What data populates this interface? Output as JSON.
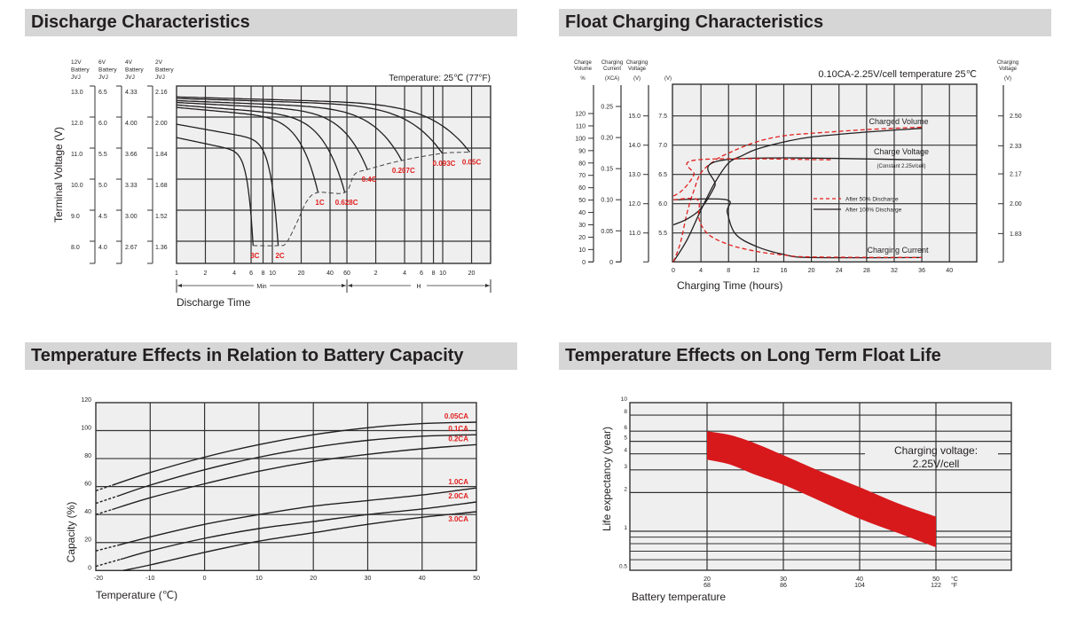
{
  "chart_data": [
    {
      "type": "line",
      "title": "Discharge Characteristics",
      "annotation": "Temperature: 25℃ (77°F)",
      "xlabel": "Discharge Time",
      "ylabel": "Terminal Voltage (V)",
      "x_scale": "log",
      "x_unit_groups": [
        {
          "label": "Min"
        },
        {
          "label": "H"
        }
      ],
      "x_ticks": [
        {
          "label": "1",
          "minutes": 1
        },
        {
          "label": "2",
          "minutes": 2
        },
        {
          "label": "4",
          "minutes": 4
        },
        {
          "label": "6",
          "minutes": 6
        },
        {
          "label": "8",
          "minutes": 8
        },
        {
          "label": "10",
          "minutes": 10
        },
        {
          "label": "20",
          "minutes": 20
        },
        {
          "label": "40",
          "minutes": 40
        },
        {
          "label": "60",
          "minutes": 60
        },
        {
          "label": "2",
          "minutes": 120
        },
        {
          "label": "4",
          "minutes": 240
        },
        {
          "label": "6",
          "minutes": 360
        },
        {
          "label": "8",
          "minutes": 480
        },
        {
          "label": "10",
          "minutes": 600
        },
        {
          "label": "20",
          "minutes": 1200
        }
      ],
      "ylim_12v": [
        7.3,
        13.0
      ],
      "y_axes": [
        {
          "header": [
            "12V",
            "Battery",
            "JVJ"
          ],
          "ticks": [
            "13.0",
            "12.0",
            "11.0",
            "10.0",
            "9.0",
            "8.0"
          ]
        },
        {
          "header": [
            "6V",
            "Battery",
            "JVJ"
          ],
          "ticks": [
            "6.5",
            "6.0",
            "5.5",
            "5.0",
            "4.5",
            "4.0"
          ]
        },
        {
          "header": [
            "4V",
            "Battery",
            "JVJ"
          ],
          "ticks": [
            "4.33",
            "4.00",
            "3.66",
            "3.33",
            "3.00",
            "2.67"
          ]
        },
        {
          "header": [
            "2V",
            "Battery",
            "JVJ"
          ],
          "ticks": [
            "2.16",
            "2.00",
            "1.84",
            "1.68",
            "1.52",
            "1.36"
          ]
        }
      ],
      "series": [
        {
          "name": "3C",
          "v_start": 11.34,
          "end_minutes": 6.3,
          "v_end": 7.86
        },
        {
          "name": "2C",
          "v_start": 11.77,
          "end_minutes": 11.5,
          "v_end": 7.86
        },
        {
          "name": "1C",
          "v_start": 12.31,
          "end_minutes": 30,
          "v_end": 9.57
        },
        {
          "name": "0.628C",
          "v_start": 12.39,
          "end_minutes": 57,
          "v_end": 9.57
        },
        {
          "name": "0.4C",
          "v_start": 12.47,
          "end_minutes": 98,
          "v_end": 10.31
        },
        {
          "name": "0.207C",
          "v_start": 12.53,
          "end_minutes": 224,
          "v_end": 10.6
        },
        {
          "name": "0.093C",
          "v_start": 12.6,
          "end_minutes": 594,
          "v_end": 10.83
        },
        {
          "name": "0.05C",
          "v_start": 12.65,
          "end_minutes": 1150,
          "v_end": 10.87
        }
      ],
      "cutoff_voltage_line": [
        [
          6.3,
          7.86
        ],
        [
          11.5,
          7.86
        ],
        [
          14,
          7.95
        ],
        [
          18,
          8.6
        ],
        [
          23,
          9.3
        ],
        [
          30,
          9.57
        ],
        [
          57,
          9.57
        ],
        [
          72,
          10.15
        ],
        [
          98,
          10.31
        ],
        [
          224,
          10.6
        ],
        [
          594,
          10.83
        ],
        [
          1150,
          10.87
        ]
      ],
      "label_color": "#e0201f",
      "grid": true
    },
    {
      "type": "line",
      "title": "Float Charging Characteristics",
      "annotation": "0.10CA-2.25V/cell  temperature 25℃",
      "xlabel": "Charging Time (hours)",
      "xlim": [
        0,
        44
      ],
      "x_ticks": [
        "0",
        "4",
        "8",
        "12",
        "16",
        "20",
        "24",
        "28",
        "32",
        "36",
        "40"
      ],
      "y_axes": [
        {
          "id": "volume",
          "header": [
            "Charge",
            "Volume",
            "%"
          ],
          "ticks": [
            "0",
            "10",
            "20",
            "30",
            "40",
            "50",
            "60",
            "70",
            "80",
            "90",
            "100",
            "110",
            "120"
          ]
        },
        {
          "id": "current",
          "header": [
            "Charging",
            "Current",
            "(XCA)"
          ],
          "ticks": [
            "0",
            "0.05",
            "0.10",
            "0.15",
            "0.20",
            "0.25"
          ]
        },
        {
          "id": "voltage12",
          "header": [
            "Charging",
            "Voltage",
            "(V)"
          ],
          "ticks": [
            "11.0",
            "12.0",
            "13.0",
            "14.0",
            "15.0"
          ]
        },
        {
          "id": "voltage6",
          "header": [
            "",
            "",
            "(V)"
          ],
          "ticks": [
            "5.5",
            "6.0",
            "6.5",
            "7.0",
            "7.5"
          ]
        },
        {
          "id": "cell",
          "header": [
            "Charging",
            "Voltage",
            "(V)"
          ],
          "ticks": [
            "1.83",
            "2.00",
            "2.17",
            "2.33",
            "2.50"
          ],
          "side": "right"
        }
      ],
      "curve_labels": [
        "Charged Volume",
        "Charge Voltage",
        "(Constant 2.25v/cell)",
        "Charging Current"
      ],
      "legend": [
        {
          "label": "After  50% Discharge",
          "color": "#e0201f",
          "style": "dashed"
        },
        {
          "label": "After 100% Discharge",
          "color": "#231f20",
          "style": "solid"
        }
      ],
      "series": [
        {
          "quantity": "Charged Volume",
          "condition": "After 100% Discharge",
          "axis": "volume",
          "points": [
            [
              0,
              0
            ],
            [
              2,
              18
            ],
            [
              4,
              42
            ],
            [
              6,
              64
            ],
            [
              8,
              80
            ],
            [
              10,
              86
            ],
            [
              12,
              91
            ],
            [
              16,
              97
            ],
            [
              20,
              101
            ],
            [
              28,
              105
            ],
            [
              36,
              108
            ]
          ]
        },
        {
          "quantity": "Charged Volume",
          "condition": "After  50% Discharge",
          "axis": "volume",
          "points": [
            [
              0,
              0
            ],
            [
              1,
              15
            ],
            [
              2,
              40
            ],
            [
              3,
              58
            ],
            [
              4,
              72
            ],
            [
              6,
              82
            ],
            [
              8,
              88
            ],
            [
              12,
              97
            ],
            [
              16,
              102
            ],
            [
              20,
              104
            ],
            [
              28,
              107
            ],
            [
              36,
              109
            ]
          ]
        },
        {
          "quantity": "Charge Voltage",
          "condition": "After 100% Discharge",
          "axis": "voltage6",
          "points": [
            [
              0,
              5.64
            ],
            [
              2,
              5.74
            ],
            [
              4,
              5.92
            ],
            [
              6,
              6.3
            ],
            [
              7.5,
              6.75
            ],
            [
              36,
              6.75
            ]
          ]
        },
        {
          "quantity": "Charge Voltage",
          "condition": "After  50% Discharge",
          "axis": "voltage6",
          "points": [
            [
              0,
              6.13
            ],
            [
              1,
              6.2
            ],
            [
              2,
              6.32
            ],
            [
              3,
              6.5
            ],
            [
              3.5,
              6.75
            ],
            [
              23,
              6.75
            ]
          ]
        },
        {
          "quantity": "Charging Current",
          "condition": "After 100% Discharge",
          "axis": "current",
          "points": [
            [
              0,
              0.1
            ],
            [
              7.7,
              0.1
            ],
            [
              7.8,
              0.08
            ],
            [
              9,
              0.045
            ],
            [
              12,
              0.025
            ],
            [
              16,
              0.012
            ],
            [
              20,
              0.007
            ],
            [
              36,
              0.007
            ]
          ]
        },
        {
          "quantity": "Charging Current",
          "condition": "After  50% Discharge",
          "axis": "current",
          "points": [
            [
              0,
              0.1
            ],
            [
              3.5,
              0.1
            ],
            [
              3.7,
              0.07
            ],
            [
              5,
              0.045
            ],
            [
              8,
              0.028
            ],
            [
              12,
              0.017
            ],
            [
              16,
              0.011
            ],
            [
              20,
              0.008
            ],
            [
              36,
              0.007
            ]
          ]
        }
      ],
      "grid": true
    },
    {
      "type": "line",
      "title": "Temperature Effects in Relation to Battery Capacity",
      "xlabel": "Temperature (℃)",
      "ylabel": "Capacity (%)",
      "xlim": [
        -20,
        50
      ],
      "ylim": [
        0,
        120
      ],
      "x_ticks": [
        "-20",
        "-10",
        "0",
        "10",
        "20",
        "30",
        "40",
        "50"
      ],
      "y_ticks": [
        "0",
        "20",
        "40",
        "60",
        "80",
        "100",
        "120"
      ],
      "label_color": "#e0201f",
      "series": [
        {
          "name": "0.05CA",
          "extrapolated_below": -17,
          "points": [
            [
              -20,
              57
            ],
            [
              -10,
              70
            ],
            [
              0,
              81
            ],
            [
              10,
              90
            ],
            [
              20,
              97
            ],
            [
              30,
              102
            ],
            [
              40,
              105
            ],
            [
              50,
              106
            ]
          ]
        },
        {
          "name": "0.1CA",
          "extrapolated_below": -16,
          "points": [
            [
              -20,
              48
            ],
            [
              -10,
              61
            ],
            [
              0,
              72
            ],
            [
              10,
              81
            ],
            [
              20,
              88
            ],
            [
              30,
              93
            ],
            [
              40,
              96
            ],
            [
              50,
              97
            ]
          ]
        },
        {
          "name": "0.2CA",
          "extrapolated_below": -17,
          "points": [
            [
              -20,
              40
            ],
            [
              -10,
              52
            ],
            [
              0,
              62
            ],
            [
              10,
              71
            ],
            [
              20,
              78
            ],
            [
              30,
              83
            ],
            [
              40,
              87
            ],
            [
              50,
              90
            ]
          ]
        },
        {
          "name": "1.0CA",
          "extrapolated_below": -16,
          "points": [
            [
              -20,
              14
            ],
            [
              -10,
              24
            ],
            [
              0,
              33
            ],
            [
              10,
              40
            ],
            [
              20,
              46
            ],
            [
              30,
              50
            ],
            [
              40,
              54
            ],
            [
              50,
              59
            ]
          ]
        },
        {
          "name": "2.0CA",
          "extrapolated_below": -15.5,
          "points": [
            [
              -20,
              3
            ],
            [
              -10,
              14
            ],
            [
              0,
              23
            ],
            [
              10,
              30
            ],
            [
              20,
              35
            ],
            [
              30,
              40
            ],
            [
              40,
              44
            ],
            [
              50,
              49
            ]
          ]
        },
        {
          "name": "3.0CA",
          "extrapolated_below": null,
          "points": [
            [
              -15,
              0
            ],
            [
              -10,
              4
            ],
            [
              0,
              13
            ],
            [
              10,
              21
            ],
            [
              20,
              27
            ],
            [
              30,
              33
            ],
            [
              40,
              38
            ],
            [
              50,
              42
            ]
          ]
        }
      ],
      "grid": true
    },
    {
      "type": "area",
      "title": "Temperature Effects on Long Term Float Life",
      "xlabel": "Battery temperature",
      "ylabel": "Life expectancy (year)",
      "xlim": [
        10,
        60
      ],
      "x_ticks": [
        {
          "c": "20",
          "f": "68"
        },
        {
          "c": "30",
          "f": "86"
        },
        {
          "c": "40",
          "f": "104"
        },
        {
          "c": "50",
          "f": "122"
        }
      ],
      "x_units": {
        "c": "°C",
        "f": "°F"
      },
      "y_scale": "log",
      "ylim": [
        0.5,
        10
      ],
      "y_ticks": [
        "0.5",
        "1",
        "2",
        "3",
        "4",
        "5",
        "6",
        "8",
        "10"
      ],
      "y_minor_grid": [
        0.6,
        0.7,
        0.8,
        0.9
      ],
      "annotation": [
        "Charging voltage:",
        "2.25V/cell"
      ],
      "band_color": "#d7191c",
      "band_upper": [
        [
          20,
          6.0
        ],
        [
          23,
          5.6
        ],
        [
          26,
          4.9
        ],
        [
          30,
          3.9
        ],
        [
          35,
          2.9
        ],
        [
          40,
          2.2
        ],
        [
          45,
          1.65
        ],
        [
          50,
          1.3
        ]
      ],
      "band_lower": [
        [
          20,
          3.6
        ],
        [
          23,
          3.3
        ],
        [
          26,
          2.8
        ],
        [
          30,
          2.3
        ],
        [
          35,
          1.7
        ],
        [
          40,
          1.25
        ],
        [
          45,
          0.97
        ],
        [
          50,
          0.75
        ]
      ],
      "grid": true
    }
  ]
}
